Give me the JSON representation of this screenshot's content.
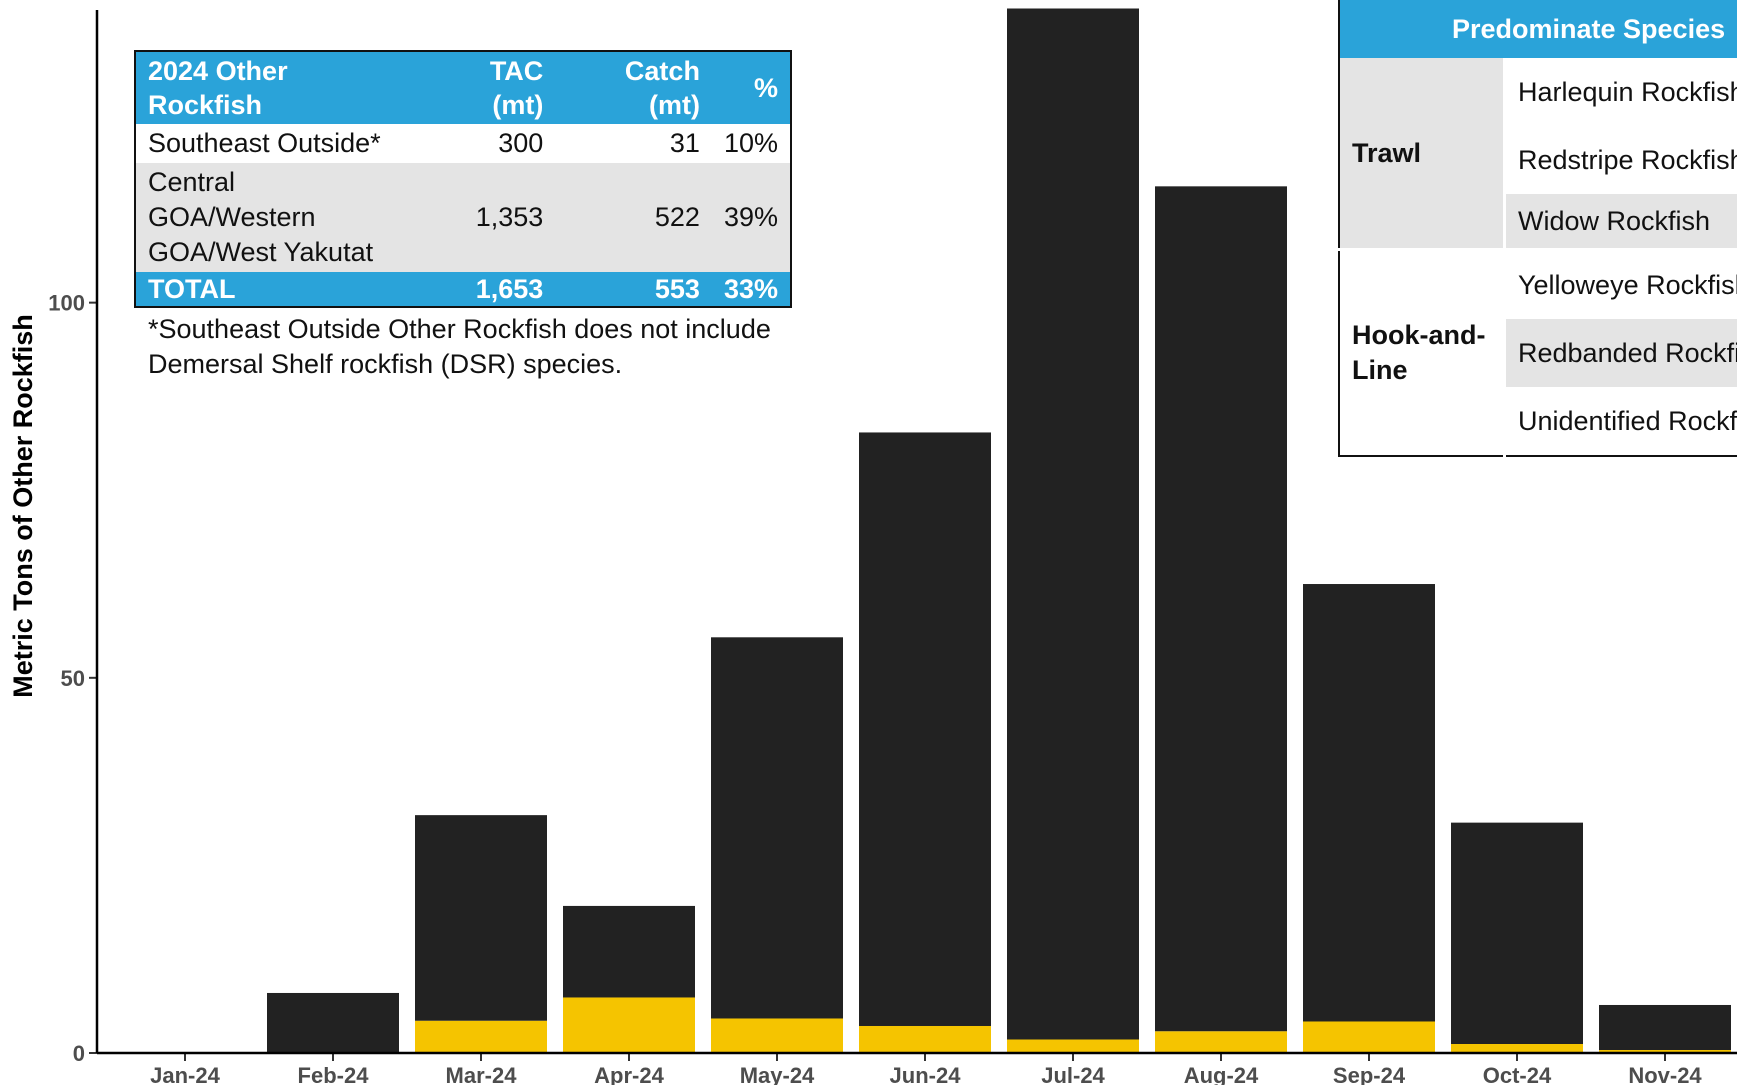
{
  "chart_data": {
    "type": "bar",
    "stacked": true,
    "categories": [
      "Jan-24",
      "Feb-24",
      "Mar-24",
      "Apr-24",
      "May-24",
      "Jun-24",
      "Jul-24",
      "Aug-24",
      "Sep-24",
      "Oct-24",
      "Nov-24"
    ],
    "series": [
      {
        "color": "#f5c400",
        "values": [
          0,
          0,
          4.3,
          7.4,
          4.6,
          3.6,
          1.8,
          2.9,
          4.2,
          1.2,
          0.4
        ]
      },
      {
        "color": "#222222",
        "values": [
          0,
          8.0,
          27.4,
          12.2,
          50.8,
          79.1,
          137.4,
          112.6,
          58.3,
          29.5,
          6.0
        ]
      }
    ],
    "ylabel": "Metric Tons of Other Rockfish",
    "xlabel": "",
    "title": "",
    "ylim": [
      0,
      139
    ],
    "yticks": [
      0,
      50,
      100
    ],
    "grid": false,
    "legend": "none"
  },
  "summary_table": {
    "header": {
      "name": "2024 Other Rockfish",
      "tac": "TAC (mt)",
      "catch": "Catch (mt)",
      "pct": "%"
    },
    "rows": [
      {
        "name": "Southeast Outside*",
        "tac": "300",
        "catch": "31",
        "pct": "10%"
      },
      {
        "name": "Central GOA/Western GOA/West Yakutat",
        "tac": "1,353",
        "catch": "522",
        "pct": "39%"
      }
    ],
    "total": {
      "name": "TOTAL",
      "tac": "1,653",
      "catch": "553",
      "pct": "33%"
    },
    "footnote": "*Southeast Outside Other Rockfish does not include Demersal Shelf rockfish (DSR) species."
  },
  "species_table": {
    "header": "Predominate Species",
    "groups": [
      {
        "gear": "Trawl",
        "species": [
          "Harlequin Rockfish",
          "Redstripe Rockfish",
          "Widow Rockfish"
        ]
      },
      {
        "gear": "Hook-and-Line",
        "species": [
          "Yelloweye Rockfish",
          "Redbanded Rockfish",
          "Unidentified Rockfish"
        ]
      }
    ]
  },
  "colors": {
    "table_header": "#2aa3d9",
    "row_grey": "#e4e4e4",
    "bar_dark": "#222222",
    "bar_yellow": "#f5c400"
  }
}
